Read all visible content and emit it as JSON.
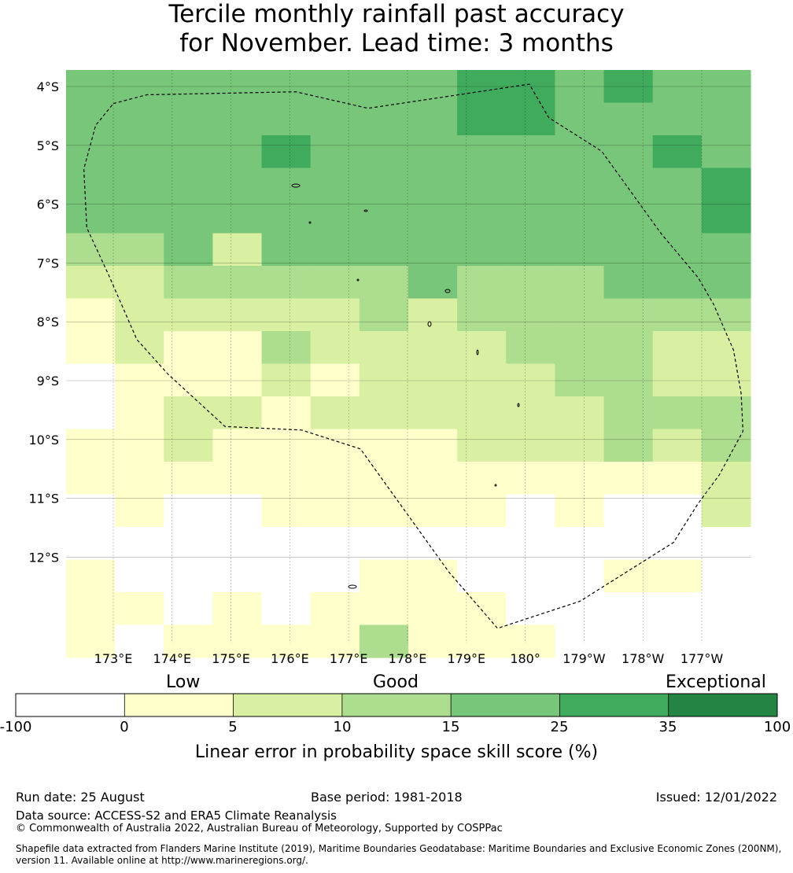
{
  "title_line1": "Tercile monthly rainfall past accuracy",
  "title_line2": "for November. Lead time: 3 months",
  "map": {
    "lat_labels": [
      "4°S",
      "5°S",
      "6°S",
      "7°S",
      "8°S",
      "9°S",
      "10°S",
      "11°S",
      "12°S"
    ],
    "lon_labels": [
      "173°E",
      "174°E",
      "175°E",
      "176°E",
      "177°E",
      "178°E",
      "179°E",
      "180°",
      "179°W",
      "178°W",
      "177°W"
    ],
    "grid": [
      [
        3,
        3,
        3,
        3,
        3,
        3,
        3,
        3,
        4,
        4,
        3,
        4,
        3,
        3
      ],
      [
        3,
        3,
        3,
        3,
        3,
        3,
        3,
        3,
        4,
        4,
        3,
        3,
        3,
        3
      ],
      [
        3,
        3,
        3,
        3,
        4,
        3,
        3,
        3,
        3,
        3,
        3,
        3,
        4,
        3
      ],
      [
        3,
        3,
        3,
        3,
        3,
        3,
        3,
        3,
        3,
        3,
        3,
        3,
        3,
        4
      ],
      [
        3,
        3,
        3,
        3,
        3,
        3,
        3,
        3,
        3,
        3,
        3,
        3,
        3,
        4
      ],
      [
        2,
        2,
        3,
        1,
        3,
        3,
        3,
        3,
        3,
        3,
        3,
        3,
        3,
        3
      ],
      [
        1,
        1,
        2,
        2,
        2,
        2,
        2,
        3,
        2,
        2,
        2,
        3,
        3,
        3
      ],
      [
        0,
        1,
        1,
        1,
        1,
        1,
        2,
        1,
        2,
        2,
        2,
        2,
        2,
        2
      ],
      [
        0,
        1,
        0,
        0,
        2,
        1,
        1,
        1,
        1,
        2,
        2,
        2,
        1,
        1
      ],
      [
        -1,
        0,
        0,
        0,
        1,
        0,
        1,
        1,
        1,
        1,
        2,
        2,
        1,
        1
      ],
      [
        -1,
        0,
        1,
        1,
        0,
        1,
        1,
        1,
        1,
        1,
        1,
        2,
        2,
        2
      ],
      [
        0,
        0,
        1,
        0,
        0,
        0,
        0,
        0,
        1,
        1,
        1,
        2,
        1,
        2
      ],
      [
        0,
        0,
        0,
        0,
        0,
        0,
        0,
        0,
        0,
        0,
        0,
        0,
        0,
        1
      ],
      [
        -1,
        0,
        -1,
        -1,
        0,
        0,
        0,
        0,
        0,
        -1,
        0,
        -1,
        -1,
        1
      ],
      [
        -1,
        -1,
        -1,
        -1,
        -1,
        -1,
        -1,
        -1,
        -1,
        -1,
        -1,
        -1,
        -1,
        -1
      ],
      [
        0,
        -1,
        -1,
        -1,
        -1,
        -1,
        0,
        0,
        -1,
        -1,
        -1,
        0,
        0,
        -1
      ],
      [
        0,
        0,
        -1,
        0,
        -1,
        0,
        0,
        0,
        0,
        -1,
        -1,
        -1,
        -1,
        -1
      ],
      [
        0,
        -1,
        0,
        0,
        0,
        0,
        2,
        0,
        0,
        0,
        -1,
        -1,
        -1,
        -1
      ]
    ],
    "eez_outline_lonlat": [
      [
        173.0,
        -4.29
      ],
      [
        173.57,
        -4.14
      ],
      [
        176.1,
        -4.09
      ],
      [
        177.33,
        -4.37
      ],
      [
        180.07,
        -3.96
      ],
      [
        180.4,
        -4.53
      ],
      [
        181.3,
        -5.1
      ],
      [
        182.1,
        -6.21
      ],
      [
        182.31,
        -6.5
      ],
      [
        182.94,
        -7.25
      ],
      [
        183.2,
        -7.7
      ],
      [
        183.54,
        -8.48
      ],
      [
        183.67,
        -9.22
      ],
      [
        183.7,
        -9.86
      ],
      [
        183.3,
        -10.6
      ],
      [
        182.93,
        -11.1
      ],
      [
        182.52,
        -11.75
      ],
      [
        180.93,
        -12.75
      ],
      [
        179.53,
        -13.21
      ],
      [
        178.7,
        -12.25
      ],
      [
        177.2,
        -10.16
      ],
      [
        176.2,
        -9.84
      ],
      [
        174.9,
        -9.78
      ],
      [
        173.93,
        -8.89
      ],
      [
        173.4,
        -8.3
      ],
      [
        172.92,
        -7.2
      ],
      [
        172.55,
        -6.4
      ],
      [
        172.5,
        -5.4
      ],
      [
        172.7,
        -4.66
      ],
      [
        173.0,
        -4.29
      ]
    ]
  },
  "legend": {
    "category_labels": [
      "Low",
      "Good",
      "Exceptional"
    ],
    "tick_labels": [
      "-100",
      "0",
      "5",
      "10",
      "15",
      "25",
      "35",
      "100"
    ],
    "colors": [
      "#ffffff",
      "#ffffcc",
      "#d9f0a3",
      "#addd8e",
      "#78c679",
      "#41ab5d",
      "#238443"
    ],
    "axis_label": "Linear error in probability space skill score (%)"
  },
  "footer": {
    "run_date": "Run date: 25 August",
    "base_period": "Base period: 1981-2018",
    "issued": "Issued: 12/01/2022",
    "data_source": "Data source: ACCESS-S2 and ERA5 Climate Reanalysis",
    "copyright": "© Commonwealth of Australia 2022, Australian Bureau of Meteorology, Supported by COSPPac",
    "shapefile_line1": "Shapefile data extracted from Flanders Marine Institute (2019), Maritime Boundaries Geodatabase: Maritime Boundaries and Exclusive Economic Zones (200NM),",
    "shapefile_line2": "version 11. Available online at http://www.marineregions.org/."
  }
}
